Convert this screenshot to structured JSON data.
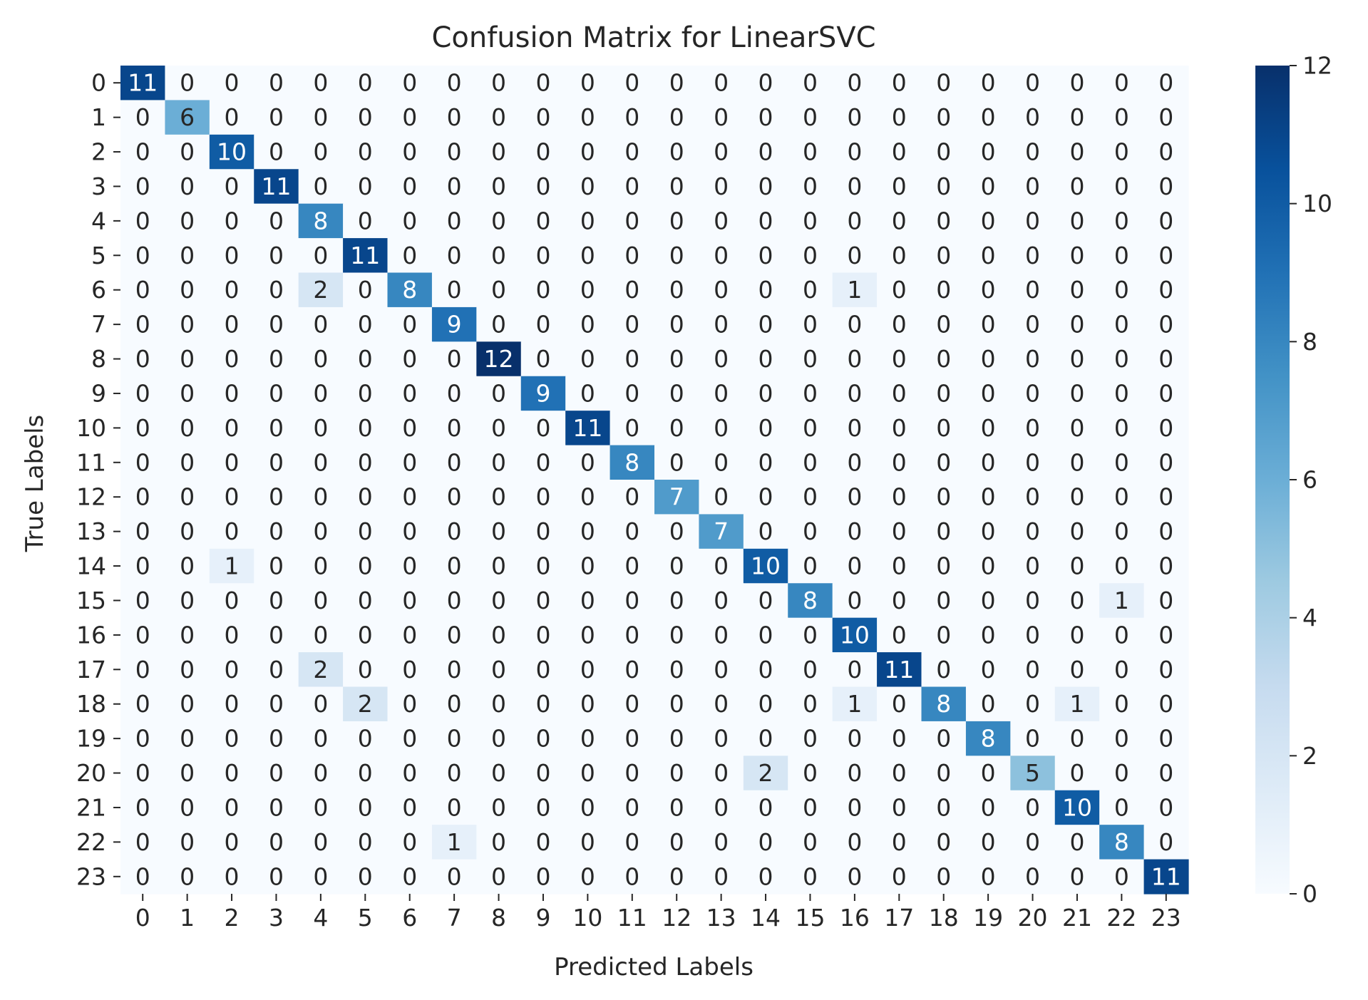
{
  "chart_data": {
    "type": "heatmap",
    "title": "Confusion Matrix for LinearSVC",
    "xlabel": "Predicted Labels",
    "ylabel": "True Labels",
    "x_categories": [
      "0",
      "1",
      "2",
      "3",
      "4",
      "5",
      "6",
      "7",
      "8",
      "9",
      "10",
      "11",
      "12",
      "13",
      "14",
      "15",
      "16",
      "17",
      "18",
      "19",
      "20",
      "21",
      "22",
      "23"
    ],
    "y_categories": [
      "0",
      "1",
      "2",
      "3",
      "4",
      "5",
      "6",
      "7",
      "8",
      "9",
      "10",
      "11",
      "12",
      "13",
      "14",
      "15",
      "16",
      "17",
      "18",
      "19",
      "20",
      "21",
      "22",
      "23"
    ],
    "values": [
      [
        11,
        0,
        0,
        0,
        0,
        0,
        0,
        0,
        0,
        0,
        0,
        0,
        0,
        0,
        0,
        0,
        0,
        0,
        0,
        0,
        0,
        0,
        0,
        0
      ],
      [
        0,
        6,
        0,
        0,
        0,
        0,
        0,
        0,
        0,
        0,
        0,
        0,
        0,
        0,
        0,
        0,
        0,
        0,
        0,
        0,
        0,
        0,
        0,
        0
      ],
      [
        0,
        0,
        10,
        0,
        0,
        0,
        0,
        0,
        0,
        0,
        0,
        0,
        0,
        0,
        0,
        0,
        0,
        0,
        0,
        0,
        0,
        0,
        0,
        0
      ],
      [
        0,
        0,
        0,
        11,
        0,
        0,
        0,
        0,
        0,
        0,
        0,
        0,
        0,
        0,
        0,
        0,
        0,
        0,
        0,
        0,
        0,
        0,
        0,
        0
      ],
      [
        0,
        0,
        0,
        0,
        8,
        0,
        0,
        0,
        0,
        0,
        0,
        0,
        0,
        0,
        0,
        0,
        0,
        0,
        0,
        0,
        0,
        0,
        0,
        0
      ],
      [
        0,
        0,
        0,
        0,
        0,
        11,
        0,
        0,
        0,
        0,
        0,
        0,
        0,
        0,
        0,
        0,
        0,
        0,
        0,
        0,
        0,
        0,
        0,
        0
      ],
      [
        0,
        0,
        0,
        0,
        2,
        0,
        8,
        0,
        0,
        0,
        0,
        0,
        0,
        0,
        0,
        0,
        1,
        0,
        0,
        0,
        0,
        0,
        0,
        0
      ],
      [
        0,
        0,
        0,
        0,
        0,
        0,
        0,
        9,
        0,
        0,
        0,
        0,
        0,
        0,
        0,
        0,
        0,
        0,
        0,
        0,
        0,
        0,
        0,
        0
      ],
      [
        0,
        0,
        0,
        0,
        0,
        0,
        0,
        0,
        12,
        0,
        0,
        0,
        0,
        0,
        0,
        0,
        0,
        0,
        0,
        0,
        0,
        0,
        0,
        0
      ],
      [
        0,
        0,
        0,
        0,
        0,
        0,
        0,
        0,
        0,
        9,
        0,
        0,
        0,
        0,
        0,
        0,
        0,
        0,
        0,
        0,
        0,
        0,
        0,
        0
      ],
      [
        0,
        0,
        0,
        0,
        0,
        0,
        0,
        0,
        0,
        0,
        11,
        0,
        0,
        0,
        0,
        0,
        0,
        0,
        0,
        0,
        0,
        0,
        0,
        0
      ],
      [
        0,
        0,
        0,
        0,
        0,
        0,
        0,
        0,
        0,
        0,
        0,
        8,
        0,
        0,
        0,
        0,
        0,
        0,
        0,
        0,
        0,
        0,
        0,
        0
      ],
      [
        0,
        0,
        0,
        0,
        0,
        0,
        0,
        0,
        0,
        0,
        0,
        0,
        7,
        0,
        0,
        0,
        0,
        0,
        0,
        0,
        0,
        0,
        0,
        0
      ],
      [
        0,
        0,
        0,
        0,
        0,
        0,
        0,
        0,
        0,
        0,
        0,
        0,
        0,
        7,
        0,
        0,
        0,
        0,
        0,
        0,
        0,
        0,
        0,
        0
      ],
      [
        0,
        0,
        1,
        0,
        0,
        0,
        0,
        0,
        0,
        0,
        0,
        0,
        0,
        0,
        10,
        0,
        0,
        0,
        0,
        0,
        0,
        0,
        0,
        0
      ],
      [
        0,
        0,
        0,
        0,
        0,
        0,
        0,
        0,
        0,
        0,
        0,
        0,
        0,
        0,
        0,
        8,
        0,
        0,
        0,
        0,
        0,
        0,
        1,
        0
      ],
      [
        0,
        0,
        0,
        0,
        0,
        0,
        0,
        0,
        0,
        0,
        0,
        0,
        0,
        0,
        0,
        0,
        10,
        0,
        0,
        0,
        0,
        0,
        0,
        0
      ],
      [
        0,
        0,
        0,
        0,
        2,
        0,
        0,
        0,
        0,
        0,
        0,
        0,
        0,
        0,
        0,
        0,
        0,
        11,
        0,
        0,
        0,
        0,
        0,
        0
      ],
      [
        0,
        0,
        0,
        0,
        0,
        2,
        0,
        0,
        0,
        0,
        0,
        0,
        0,
        0,
        0,
        0,
        1,
        0,
        8,
        0,
        0,
        1,
        0,
        0
      ],
      [
        0,
        0,
        0,
        0,
        0,
        0,
        0,
        0,
        0,
        0,
        0,
        0,
        0,
        0,
        0,
        0,
        0,
        0,
        0,
        8,
        0,
        0,
        0,
        0
      ],
      [
        0,
        0,
        0,
        0,
        0,
        0,
        0,
        0,
        0,
        0,
        0,
        0,
        0,
        0,
        2,
        0,
        0,
        0,
        0,
        0,
        5,
        0,
        0,
        0
      ],
      [
        0,
        0,
        0,
        0,
        0,
        0,
        0,
        0,
        0,
        0,
        0,
        0,
        0,
        0,
        0,
        0,
        0,
        0,
        0,
        0,
        0,
        10,
        0,
        0
      ],
      [
        0,
        0,
        0,
        0,
        0,
        0,
        0,
        1,
        0,
        0,
        0,
        0,
        0,
        0,
        0,
        0,
        0,
        0,
        0,
        0,
        0,
        0,
        8,
        0
      ],
      [
        0,
        0,
        0,
        0,
        0,
        0,
        0,
        0,
        0,
        0,
        0,
        0,
        0,
        0,
        0,
        0,
        0,
        0,
        0,
        0,
        0,
        0,
        0,
        11
      ]
    ],
    "vmin": 0,
    "vmax": 12,
    "colormap": "Blues",
    "colorbar_ticks": [
      0,
      2,
      4,
      6,
      8,
      10,
      12
    ],
    "colorbar_tick_labels": [
      "0",
      "2",
      "4",
      "6",
      "8",
      "10",
      "12"
    ],
    "annotated": true,
    "grid": false
  }
}
